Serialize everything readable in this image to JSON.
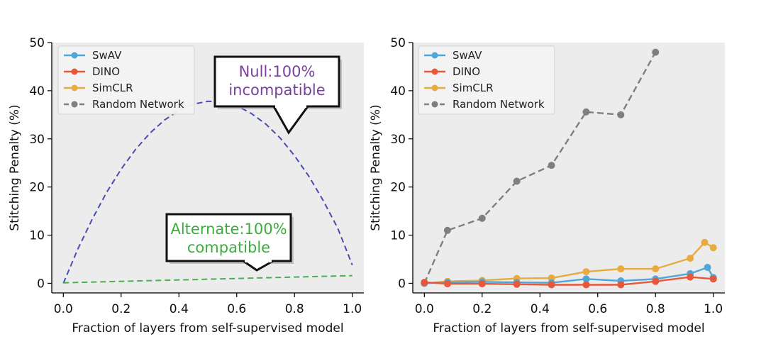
{
  "chart_data": [
    {
      "type": "line",
      "xlabel": "Fraction of layers from self-supervised model",
      "ylabel": "Stitching Penalty (%)",
      "xlim": [
        -0.04,
        1.04
      ],
      "ylim": [
        -2,
        50
      ],
      "xticks": [
        0.0,
        0.2,
        0.4,
        0.6,
        0.8,
        1.0
      ],
      "xtick_labels": [
        "0.0",
        "0.2",
        "0.4",
        "0.6",
        "0.8",
        "1.0"
      ],
      "yticks": [
        0,
        10,
        20,
        30,
        40,
        50
      ],
      "ytick_labels": [
        "0",
        "10",
        "20",
        "30",
        "40",
        "50"
      ],
      "grid": false,
      "legend_position": "top-left",
      "legend": [
        {
          "name": "SwAV",
          "color": "#4fa6d8",
          "style": "solid-marker"
        },
        {
          "name": "DINO",
          "color": "#e8573a",
          "style": "solid-marker"
        },
        {
          "name": "SimCLR",
          "color": "#e9aa3e",
          "style": "solid-marker"
        },
        {
          "name": "Random Network",
          "color": "#7f7f7f",
          "style": "dashed-marker"
        }
      ],
      "series": [
        {
          "name": "",
          "style": "dashed",
          "color": "#4a4ab4",
          "x": [
            0.0,
            0.05,
            0.1,
            0.15,
            0.2,
            0.25,
            0.3,
            0.35,
            0.4,
            0.45,
            0.5,
            0.55,
            0.6,
            0.65,
            0.7,
            0.75,
            0.8,
            0.85,
            0.9,
            0.95,
            1.0
          ],
          "y": [
            0.0,
            7.1,
            13.3,
            18.9,
            23.7,
            27.8,
            31.2,
            33.9,
            35.9,
            37.2,
            37.8,
            37.7,
            36.9,
            35.3,
            33.1,
            30.2,
            26.5,
            22.2,
            17.1,
            11.4,
            3.8
          ]
        },
        {
          "name": "",
          "style": "dashed",
          "color": "#4caf50",
          "x": [
            0.0,
            1.0
          ],
          "y": [
            0.1,
            1.6
          ]
        }
      ],
      "callouts": [
        {
          "lines": [
            "Null:100%",
            "incompatible"
          ],
          "color": "#7b3fa0"
        },
        {
          "lines": [
            "Alternate:100%",
            "compatible"
          ],
          "color": "#3aae3a"
        }
      ]
    },
    {
      "type": "line",
      "xlabel": "Fraction of layers from self-supervised model",
      "ylabel": "Stitching Penalty (%)",
      "xlim": [
        -0.04,
        1.04
      ],
      "ylim": [
        -2,
        50
      ],
      "xticks": [
        0.0,
        0.2,
        0.4,
        0.6,
        0.8,
        1.0
      ],
      "xtick_labels": [
        "0.0",
        "0.2",
        "0.4",
        "0.6",
        "0.8",
        "1.0"
      ],
      "yticks": [
        0,
        10,
        20,
        30,
        40,
        50
      ],
      "ytick_labels": [
        "0",
        "10",
        "20",
        "30",
        "40",
        "50"
      ],
      "grid": false,
      "legend_position": "top-left",
      "series": [
        {
          "name": "Random Network",
          "color": "#7f7f7f",
          "style": "dashed-marker",
          "x": [
            0.0,
            0.08,
            0.2,
            0.32,
            0.44,
            0.56,
            0.68,
            0.8
          ],
          "y": [
            0.0,
            11.0,
            13.5,
            21.2,
            24.5,
            35.6,
            35.0,
            48.0
          ]
        },
        {
          "name": "SimCLR",
          "color": "#e9aa3e",
          "style": "solid-marker",
          "x": [
            0.0,
            0.08,
            0.2,
            0.32,
            0.44,
            0.56,
            0.68,
            0.8,
            0.92,
            0.97,
            1.0
          ],
          "y": [
            0.0,
            0.4,
            0.6,
            1.0,
            1.1,
            2.4,
            3.0,
            3.0,
            5.2,
            8.5,
            7.4
          ]
        },
        {
          "name": "SwAV",
          "color": "#4fa6d8",
          "style": "solid-marker",
          "x": [
            0.0,
            0.08,
            0.2,
            0.32,
            0.44,
            0.56,
            0.68,
            0.8,
            0.92,
            0.98,
            1.0
          ],
          "y": [
            0.0,
            0.2,
            0.3,
            0.2,
            0.1,
            0.9,
            0.5,
            0.9,
            2.0,
            3.3,
            1.2
          ]
        },
        {
          "name": "DINO",
          "color": "#e8573a",
          "style": "solid-marker",
          "x": [
            0.0,
            0.08,
            0.2,
            0.32,
            0.44,
            0.56,
            0.68,
            0.8,
            0.92,
            1.0
          ],
          "y": [
            0.2,
            -0.1,
            -0.1,
            -0.2,
            -0.3,
            -0.3,
            -0.3,
            0.4,
            1.3,
            0.9
          ]
        }
      ]
    }
  ]
}
